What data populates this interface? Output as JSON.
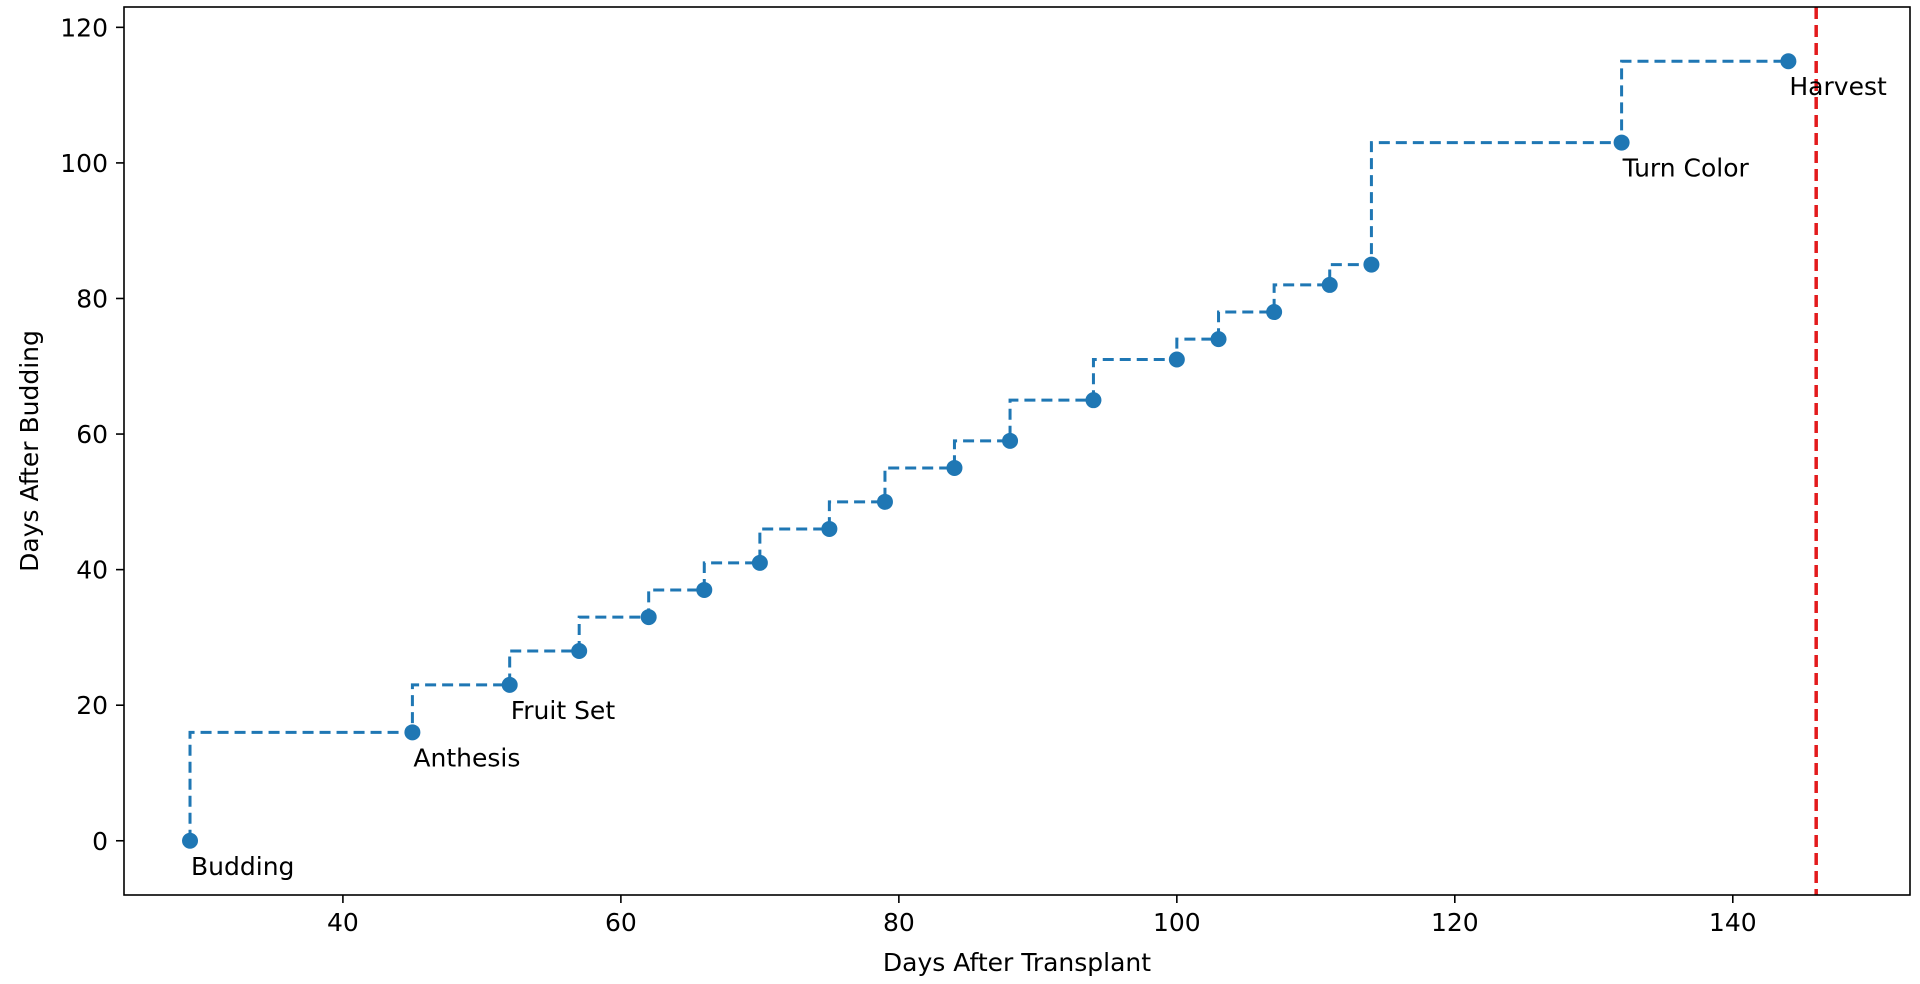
{
  "chart_data": {
    "type": "line",
    "title": "",
    "xlabel": "Days After Transplant",
    "ylabel": "Days After Budding",
    "xlim": [
      24.25,
      152.75
    ],
    "ylim": [
      -8,
      123
    ],
    "xticks": [
      40,
      60,
      80,
      100,
      120,
      140
    ],
    "yticks": [
      0,
      20,
      40,
      60,
      80,
      100,
      120
    ],
    "grid": false,
    "legend": "none",
    "series": [
      {
        "style": "step-post dashed with circle markers",
        "color": "#1f77b4",
        "x": [
          29,
          45,
          52,
          57,
          62,
          66,
          70,
          75,
          79,
          84,
          88,
          94,
          100,
          103,
          107,
          111,
          114,
          132,
          144
        ],
        "y": [
          0,
          16,
          23,
          28,
          33,
          37,
          41,
          46,
          50,
          55,
          59,
          65,
          71,
          74,
          78,
          82,
          85,
          103,
          115
        ]
      }
    ],
    "annotations": [
      {
        "text": "Budding",
        "x": 29,
        "y": 0
      },
      {
        "text": "Anthesis",
        "x": 45,
        "y": 16
      },
      {
        "text": "Fruit Set",
        "x": 52,
        "y": 23
      },
      {
        "text": "Turn Color",
        "x": 132,
        "y": 103
      },
      {
        "text": "Harvest",
        "x": 144,
        "y": 115
      }
    ],
    "reference_lines": [
      {
        "orientation": "vertical",
        "x": 146,
        "color": "#e31a1c",
        "style": "dashed"
      }
    ]
  }
}
